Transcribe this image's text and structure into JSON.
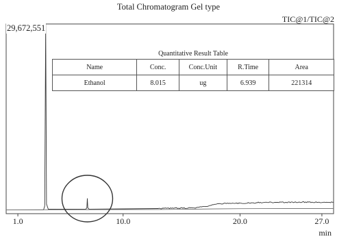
{
  "chart_data": {
    "type": "line",
    "title": "Total Chromatogram Gel type",
    "trace_label": "TIC@1/TIC@2",
    "y_max_label": "29,672,551",
    "xlabel": "min",
    "xlim": [
      0.0,
      28.0
    ],
    "ylim": [
      0,
      29672551
    ],
    "x_ticks": [
      {
        "value": 1.0,
        "label": "1.0"
      },
      {
        "value": 10.0,
        "label": "10.0"
      },
      {
        "value": 20.0,
        "label": "20.0"
      },
      {
        "value": 27.0,
        "label": "27.0"
      }
    ],
    "grid": false,
    "series": [
      {
        "x": [
          0.0,
          3.2,
          3.3,
          3.38,
          3.45,
          3.6,
          6.8,
          6.9,
          6.94,
          6.98,
          7.1,
          13.0,
          16.0,
          17.0,
          18.0,
          19.0,
          20.0,
          22.0,
          25.0,
          28.0
        ],
        "y": [
          600000,
          600000,
          1200000,
          29672551,
          1500000,
          700000,
          700000,
          900000,
          2400000,
          900000,
          700000,
          800000,
          900000,
          1100000,
          1500000,
          1600000,
          1650000,
          1750000,
          1800000,
          1800000
        ]
      },
      {
        "x": [
          0.0,
          13.0,
          16.0,
          18.0,
          20.0,
          24.0,
          28.0
        ],
        "y": [
          600000,
          650000,
          700000,
          750000,
          780000,
          800000,
          800000
        ]
      }
    ],
    "table": {
      "caption": "Quantitative Result Table",
      "columns": [
        "Name",
        "Conc.",
        "Conc.Unit",
        "R.Time",
        "Area"
      ],
      "rows": [
        [
          "Ethanol",
          "8.015",
          "ug",
          "6.939",
          "221314"
        ]
      ]
    },
    "annotations": [
      {
        "type": "circle",
        "x": 6.94
      }
    ]
  }
}
